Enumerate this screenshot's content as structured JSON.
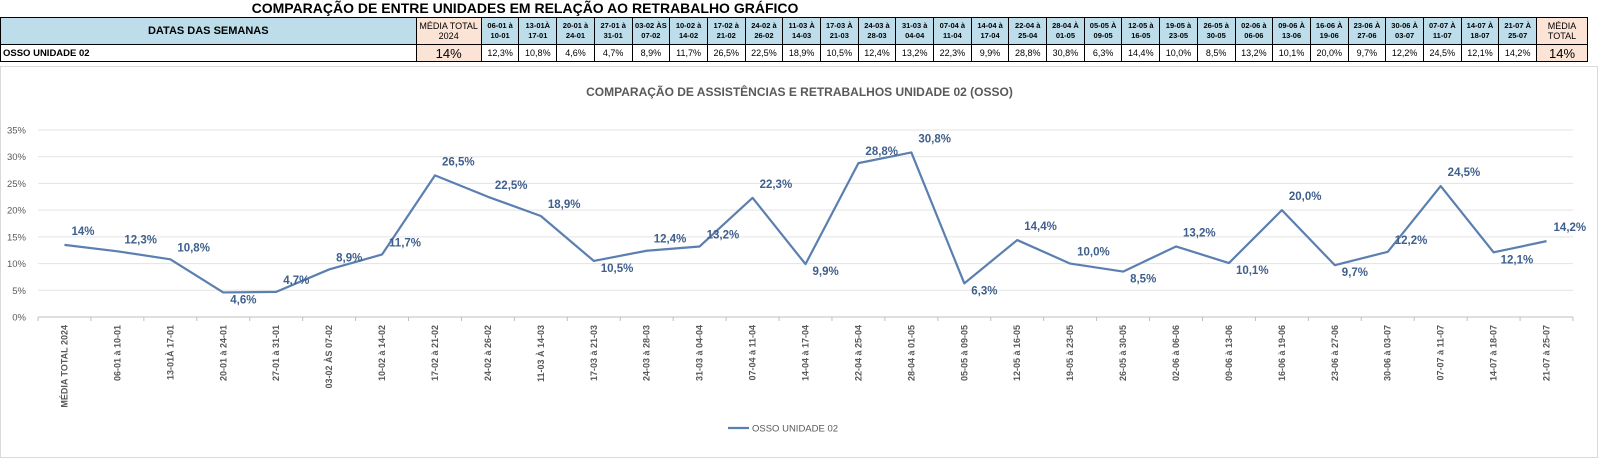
{
  "sheet": {
    "title": "COMPARAÇÃO DE ENTRE UNIDADES EM RELAÇÃO AO RETRABALHO GRÁFICO",
    "header_label": "DATAS DAS SEMANAS",
    "avg_header": "MÉDIA TOTAL 2024",
    "week_headers": [
      "06-01 à 10-01",
      "13-01À 17-01",
      "20-01 à 24-01",
      "27-01 à 31-01",
      "03-02 ÀS 07-02",
      "10-02 à 14-02",
      "17-02 à 21-02",
      "24-02 à 26-02",
      "11-03 À 14-03",
      "17-03 À 21-03",
      "24-03 à 28-03",
      "31-03 à 04-04",
      "07-04 à 11-04",
      "14-04 à 17-04",
      "22-04 à 25-04",
      "28-04 À 01-05",
      "05-05 À 09-05",
      "12-05 à 16-05",
      "19-05 à 23-05",
      "26-05 à 30-05",
      "02-06 à 06-06",
      "09-06 À 13-06",
      "16-06 À 19-06",
      "23-06 À 27-06",
      "30-06 À 03-07",
      "07-07 À 11-07",
      "14-07 À 18-07",
      "21-07 À 25-07"
    ],
    "total_header": "MÉDIA TOTAL",
    "row_label": "OSSO UNIDADE 02",
    "avg_value": "14%",
    "week_values": [
      "12,3%",
      "10,8%",
      "4,6%",
      "4,7%",
      "8,9%",
      "11,7%",
      "26,5%",
      "22,5%",
      "18,9%",
      "10,5%",
      "12,4%",
      "13,2%",
      "22,3%",
      "9,9%",
      "28,8%",
      "30,8%",
      "6,3%",
      "14,4%",
      "10,0%",
      "8,5%",
      "13,2%",
      "10,1%",
      "20,0%",
      "9,7%",
      "12,2%",
      "24,5%",
      "12,1%",
      "14,2%"
    ],
    "total_value": "14%"
  },
  "chart_data": {
    "type": "line",
    "title": "COMPARAÇÃO DE ASSISTÊNCIAS E RETRABALHOS UNIDADE 02  (OSSO)",
    "categories": [
      "MÉDIA TOTAL 2024",
      "06-01 à 10-01",
      "13-01À 17-01",
      "20-01 à 24-01",
      "27-01 à 31-01",
      "03-02 ÀS 07-02",
      "10-02 à 14-02",
      "17-02 à 21-02",
      "24-02 à 26-02",
      "11-03  À 14-03",
      "17-03 à 21-03",
      "24-03 à 28-03",
      "31-03 à 04-04",
      "07-04 à 11-04",
      "14-04 à 17-04",
      "22-04 à 25-04",
      "28-04 à 01-05",
      "05-05 à 09-05",
      "12-05 à 16-05",
      "19-05 à 23-05",
      "26-05 à 30-05",
      "02-06 à 06-06",
      "09-06 à 13-06",
      "16-06 à 19-06",
      "23-06 à 27-06",
      "30-06 à 03-07",
      "07-07 à 11-07",
      "14-07 à 18-07",
      "21-07 à 25-07"
    ],
    "series": [
      {
        "name": "OSSO UNIDADE 02",
        "values": [
          13.5,
          12.3,
          10.8,
          4.6,
          4.7,
          8.9,
          11.7,
          26.5,
          22.5,
          18.9,
          10.5,
          12.4,
          13.2,
          22.3,
          9.9,
          28.8,
          30.8,
          6.3,
          14.4,
          10.0,
          8.5,
          13.2,
          10.1,
          20.0,
          9.7,
          12.2,
          24.5,
          12.1,
          14.2
        ],
        "labels": [
          "14%",
          "12,3%",
          "10,8%",
          "4,6%",
          "4,7%",
          "8,9%",
          "11,7%",
          "26,5%",
          "22,5%",
          "18,9%",
          "10,5%",
          "12,4%",
          "13,2%",
          "22,3%",
          "9,9%",
          "28,8%",
          "30,8%",
          "6,3%",
          "14,4%",
          "10,0%",
          "8,5%",
          "13,2%",
          "10,1%",
          "20,0%",
          "9,7%",
          "12,2%",
          "24,5%",
          "12,1%",
          "14,2%"
        ],
        "color": "#5a7fb0"
      }
    ],
    "y_ticks": [
      "0%",
      "5%",
      "10%",
      "15%",
      "20%",
      "25%",
      "30%",
      "35%"
    ],
    "ylim": [
      0,
      35
    ],
    "grid": true,
    "legend_position": "bottom",
    "label_color": "#3f5f8c"
  }
}
